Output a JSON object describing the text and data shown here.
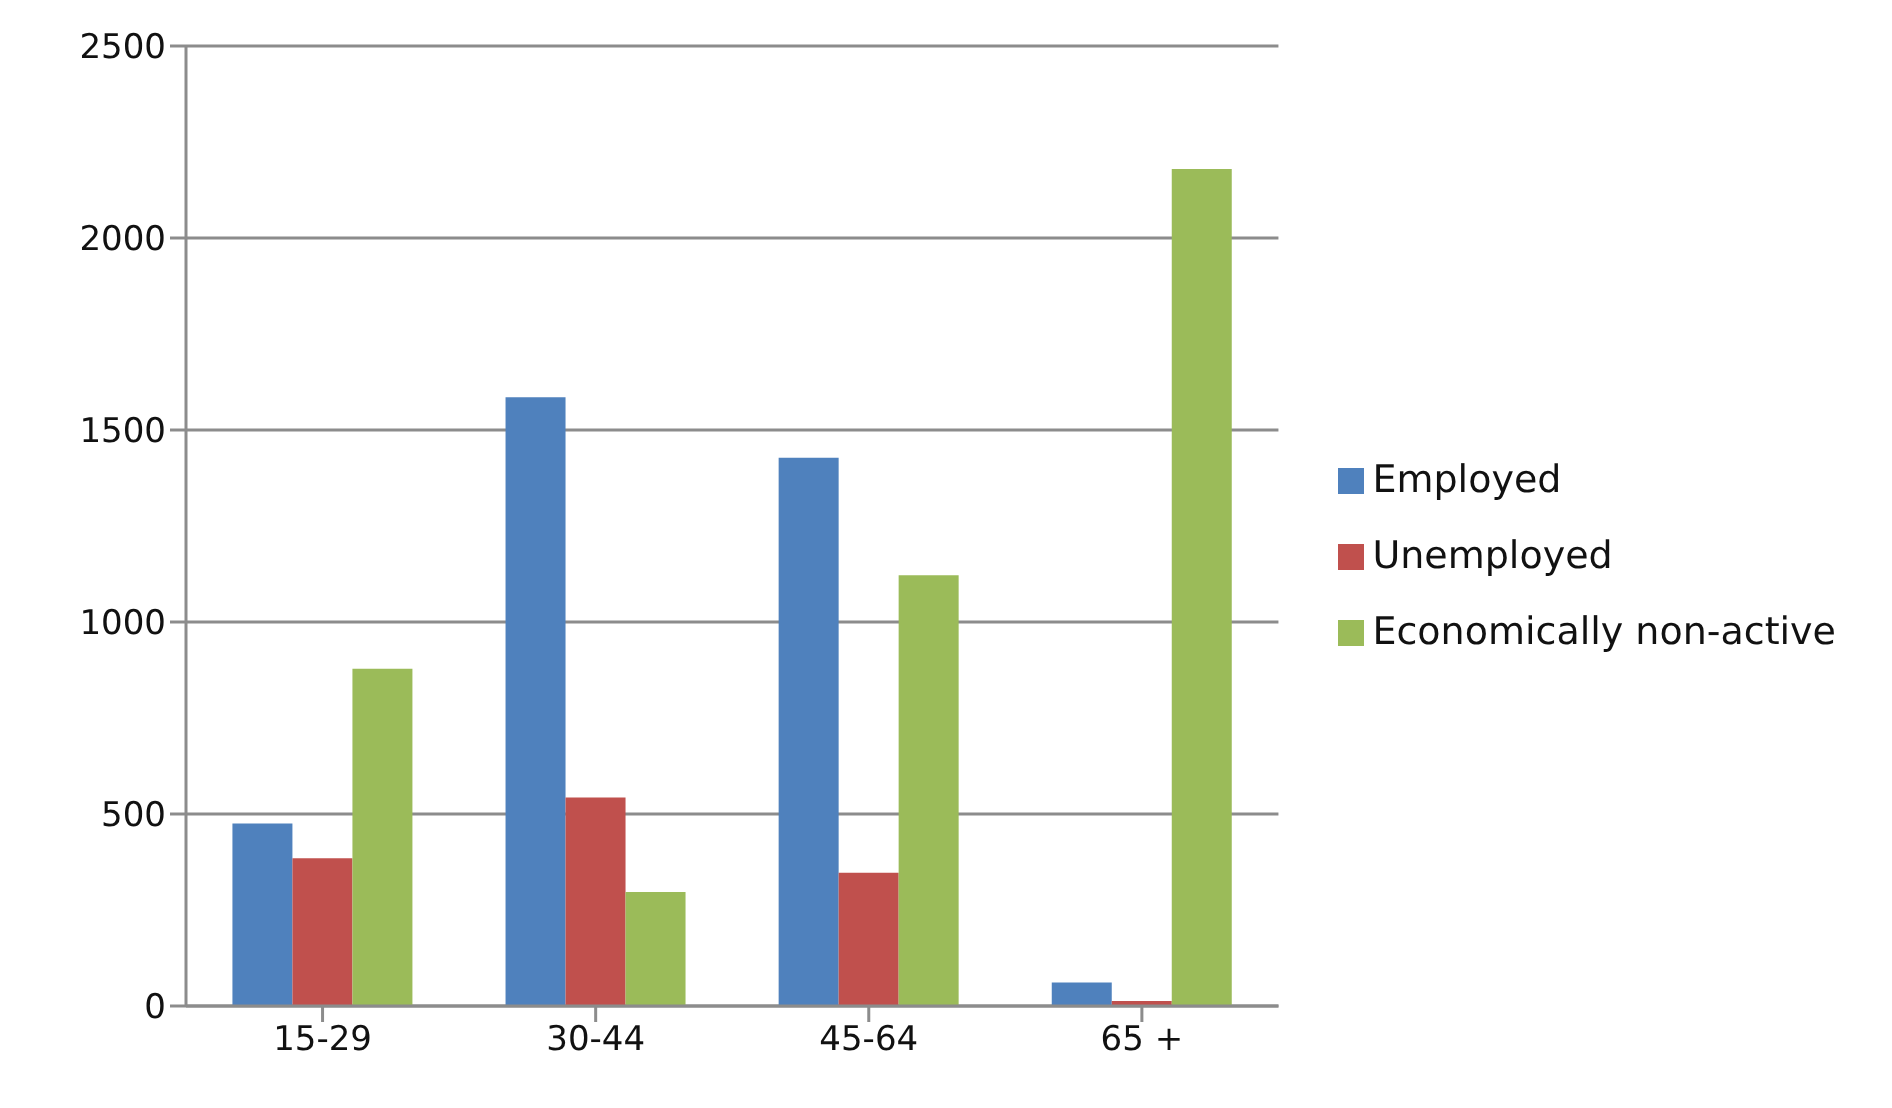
{
  "chart_data": {
    "type": "bar",
    "categories": [
      "15-29",
      "30-44",
      "45-64",
      "65 +"
    ],
    "series": [
      {
        "name": "Employed",
        "color": "#4f81bd",
        "values": [
          475,
          1585,
          1428,
          61
        ]
      },
      {
        "name": "Unemployed",
        "color": "#c0504d",
        "values": [
          385,
          543,
          347,
          13
        ]
      },
      {
        "name": "Economically non-active",
        "color": "#9bbb59",
        "values": [
          878,
          297,
          1122,
          2180
        ]
      }
    ],
    "ylim": [
      0,
      2500
    ],
    "yticks": [
      0,
      500,
      1000,
      1500,
      2000,
      2500
    ],
    "grid": "y",
    "legend": "right"
  }
}
